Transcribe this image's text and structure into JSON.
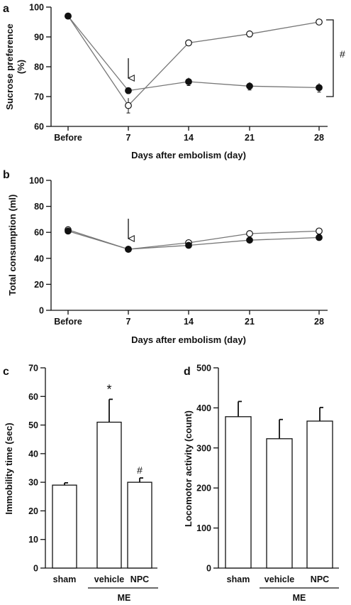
{
  "chart_data": [
    {
      "panel": "a",
      "type": "line",
      "x": [
        "Before",
        "7",
        "14",
        "21",
        "28"
      ],
      "xlabel": "Days after embolism (day)",
      "ylabel": "Sucrose preference (%)",
      "ylabel_lines": [
        "Sucrose preference",
        "(%)"
      ],
      "ylim": [
        60,
        100
      ],
      "yticks": [
        "60",
        "70",
        "80",
        "90",
        "100"
      ],
      "series": [
        {
          "marker": "open-circle",
          "values": [
            97,
            67,
            88,
            91,
            95
          ],
          "errors": [
            0.8,
            2.5,
            0.8,
            1.0,
            0.6
          ]
        },
        {
          "marker": "filled-circle",
          "values": [
            97,
            72,
            75,
            73.5,
            73
          ],
          "errors": [
            0.8,
            1.0,
            1.3,
            1.3,
            1.5
          ]
        }
      ],
      "arrow_at": "7",
      "significance": "#"
    },
    {
      "panel": "b",
      "type": "line",
      "x": [
        "Before",
        "7",
        "14",
        "21",
        "28"
      ],
      "xlabel": "Days after embolism (day)",
      "ylabel": "Total consumption (ml)",
      "ylim": [
        0,
        100
      ],
      "yticks": [
        "0",
        "20",
        "40",
        "60",
        "80",
        "100"
      ],
      "series": [
        {
          "marker": "open-circle",
          "values": [
            62,
            47,
            52,
            59,
            61
          ],
          "errors": [
            2.0,
            1.0,
            2.5,
            2.0,
            2.5
          ]
        },
        {
          "marker": "filled-circle",
          "values": [
            61,
            47,
            50,
            54,
            56
          ],
          "errors": [
            2.0,
            1.0,
            2.0,
            1.5,
            1.5
          ]
        }
      ],
      "arrow_at": "7"
    },
    {
      "panel": "c",
      "type": "bar",
      "categories": [
        "sham",
        "vehicle",
        "NPC"
      ],
      "values": [
        29,
        51,
        30
      ],
      "errors": [
        0.8,
        8,
        1.5
      ],
      "ylabel": "Immobility time (sec)",
      "ylim": [
        0,
        70
      ],
      "yticks": [
        "0",
        "10",
        "20",
        "30",
        "40",
        "50",
        "60",
        "70"
      ],
      "group_label": "ME",
      "annotations": [
        {
          "category": "vehicle",
          "text": "*"
        },
        {
          "category": "NPC",
          "text": "#"
        }
      ]
    },
    {
      "panel": "d",
      "type": "bar",
      "categories": [
        "sham",
        "vehicle",
        "NPC"
      ],
      "values": [
        378,
        323,
        367
      ],
      "errors": [
        38,
        48,
        34
      ],
      "ylabel": "Locomotor activity (count)",
      "ylim": [
        0,
        500
      ],
      "yticks": [
        "0",
        "100",
        "200",
        "300",
        "400",
        "500"
      ],
      "group_label": "ME"
    }
  ]
}
